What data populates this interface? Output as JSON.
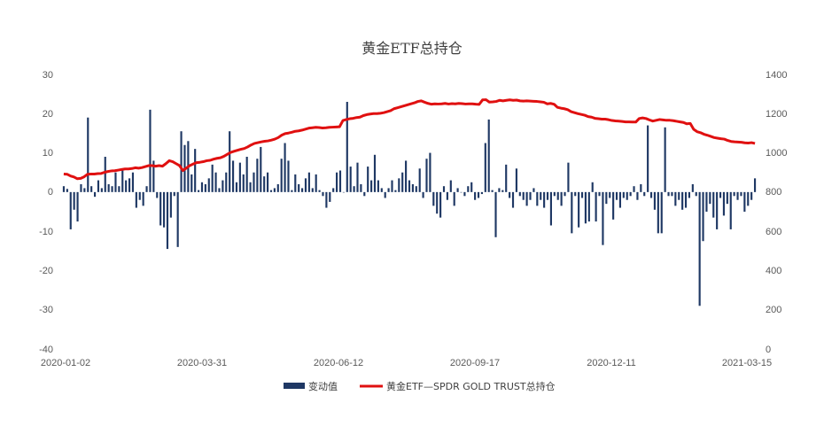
{
  "chart_data": {
    "type": "bar+line",
    "title": "黄金ETF总持仓",
    "x_ticks": [
      "2020-01-02",
      "2020-03-31",
      "2020-06-12",
      "2020-09-17",
      "2020-12-11",
      "2021-03-15"
    ],
    "y_left": {
      "min": -40,
      "max": 30,
      "ticks": [
        "30",
        "20",
        "10",
        "0",
        "-10",
        "-20",
        "-30",
        "-40"
      ]
    },
    "y_right": {
      "min": 0,
      "max": 1400,
      "ticks": [
        "1400",
        "1200",
        "1000",
        "800",
        "600",
        "400",
        "200",
        "0"
      ]
    },
    "colors": {
      "bar": "#1f3864",
      "line": "#e01010"
    },
    "series": [
      {
        "name": "变动值",
        "kind": "bar",
        "axis": "left",
        "values": [
          1.5,
          0.8,
          -9.5,
          -4.5,
          -7.5,
          2,
          1,
          19,
          1.5,
          -1.2,
          3,
          1,
          9,
          2,
          1.5,
          5,
          1.5,
          5.5,
          3,
          3.5,
          5,
          -4,
          -2,
          -3.5,
          1.5,
          21,
          8,
          -1.5,
          -8.5,
          -9,
          -14.5,
          -6.5,
          -1,
          -14,
          15.5,
          12,
          13,
          4.5,
          11,
          0.5,
          2.5,
          2,
          3.5,
          7,
          5,
          1,
          3,
          5,
          15.5,
          8,
          2.5,
          7.5,
          4.5,
          9,
          2.5,
          5,
          8.5,
          11.5,
          4,
          5,
          0.5,
          1,
          2,
          8.5,
          12.5,
          8,
          0.5,
          4.5,
          2,
          1,
          3.5,
          5,
          1,
          4.5,
          0.5,
          -1,
          -4,
          -2.5,
          1,
          5,
          5.5,
          0,
          23,
          6.5,
          1.5,
          7.5,
          2,
          -1,
          6.5,
          3,
          9.5,
          3,
          1,
          -1.5,
          1,
          3,
          0.5,
          3.5,
          5,
          8,
          3,
          2,
          1.5,
          6,
          -1.5,
          8.5,
          10,
          -3.5,
          -5.5,
          -6.5,
          1.5,
          -2,
          3,
          -3.5,
          1,
          0,
          -1,
          1.5,
          2.5,
          -2,
          -1.5,
          -0.5,
          12.5,
          18.5,
          0.5,
          -11.5,
          1,
          0.5,
          7,
          -1.5,
          -4,
          6,
          -1,
          -2,
          -3.5,
          -2,
          1,
          -3.5,
          -2,
          -4,
          -2,
          -8.5,
          -1,
          -2,
          -3.5,
          -1,
          7.5,
          -10.5,
          -1,
          -9,
          -1.5,
          -8,
          -7.5,
          2.5,
          -7.5,
          -1,
          -13.5,
          -3,
          -1.5,
          -7,
          -2,
          -4,
          -1.5,
          -2,
          -1,
          1.5,
          -2,
          2,
          -1,
          17,
          -1.5,
          -4.5,
          -10.5,
          -10.5,
          16.5,
          -1,
          -1,
          -3.5,
          -2,
          -4.5,
          -4,
          -1.5,
          2,
          -1,
          -29,
          -12.5,
          -5,
          -3,
          -6.5,
          -9.5,
          -1.5,
          -6,
          -3,
          -9.5,
          -1,
          -2,
          -1,
          -5,
          -3.5,
          -2,
          3.5
        ]
      },
      {
        "name": "黄金ETF—SPDR GOLD TRUST总持仓",
        "kind": "line",
        "axis": "right",
        "values": [
          892,
          891,
          882,
          877,
          868,
          870,
          878,
          891,
          892,
          892,
          894,
          895,
          901,
          905,
          908,
          909,
          912,
          915,
          918,
          918,
          920,
          924,
          922,
          925,
          930,
          935,
          935,
          932,
          935,
          932,
          945,
          960,
          955,
          945,
          935,
          910,
          922,
          935,
          943,
          950,
          952,
          955,
          960,
          962,
          968,
          972,
          975,
          982,
          992,
          1002,
          1008,
          1013,
          1018,
          1022,
          1030,
          1040,
          1048,
          1052,
          1056,
          1059,
          1061,
          1065,
          1070,
          1078,
          1090,
          1098,
          1101,
          1105,
          1110,
          1112,
          1116,
          1121,
          1126,
          1128,
          1130,
          1129,
          1127,
          1128,
          1130,
          1131,
          1132,
          1133,
          1165,
          1170,
          1174,
          1176,
          1180,
          1182,
          1190,
          1195,
          1198,
          1200,
          1200,
          1202,
          1205,
          1210,
          1215,
          1225,
          1230,
          1235,
          1240,
          1245,
          1250,
          1255,
          1262,
          1265,
          1258,
          1252,
          1248,
          1250,
          1249,
          1250,
          1252,
          1249,
          1251,
          1250,
          1252,
          1251,
          1249,
          1250,
          1250,
          1248,
          1247,
          1270,
          1271,
          1259,
          1260,
          1262,
          1268,
          1265,
          1268,
          1270,
          1268,
          1269,
          1265,
          1264,
          1265,
          1264,
          1263,
          1262,
          1260,
          1258,
          1250,
          1252,
          1248,
          1232,
          1228,
          1225,
          1220,
          1210,
          1205,
          1200,
          1196,
          1192,
          1185,
          1182,
          1176,
          1174,
          1172,
          1172,
          1169,
          1165,
          1163,
          1162,
          1160,
          1158,
          1158,
          1157,
          1157,
          1175,
          1178,
          1175,
          1168,
          1162,
          1166,
          1170,
          1168,
          1166,
          1166,
          1164,
          1161,
          1158,
          1155,
          1148,
          1150,
          1120,
          1108,
          1103,
          1095,
          1090,
          1084,
          1078,
          1075,
          1072,
          1070,
          1063,
          1058,
          1056,
          1055,
          1054,
          1051,
          1050,
          1052,
          1048
        ]
      }
    ]
  }
}
